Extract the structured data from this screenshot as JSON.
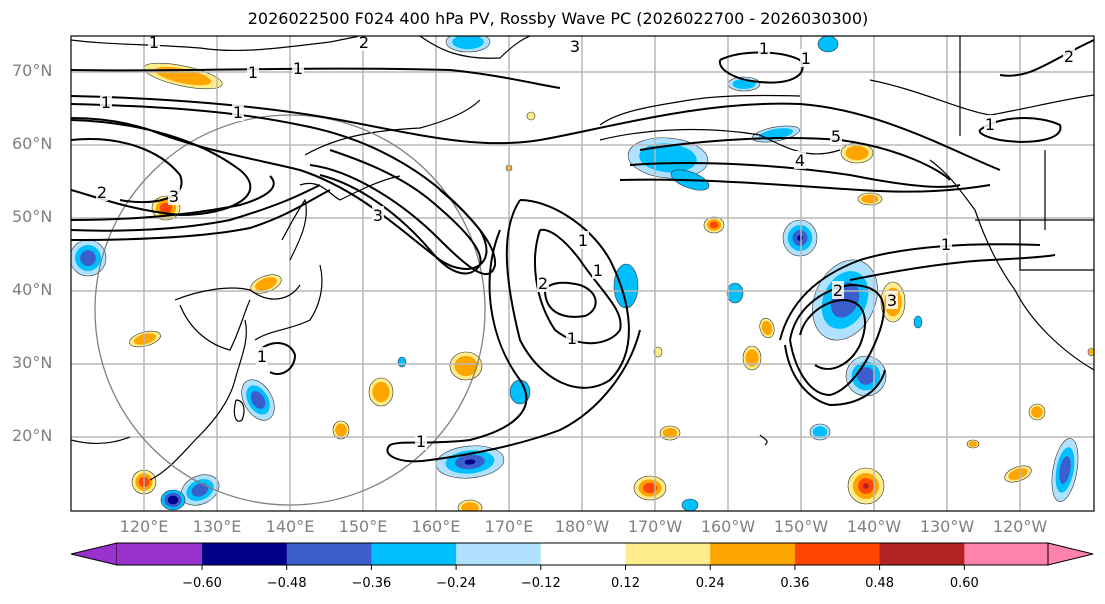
{
  "title": "2026022500 F024 400 hPa PV, Rossby Wave PC (2026022700 - 2026030300)",
  "chart_data": {
    "type": "map",
    "title": "2026022500 F024 400 hPa PV, Rossby Wave PC (2026022700 - 2026030300)",
    "lat_ticks": [
      "70°N",
      "60°N",
      "50°N",
      "40°N",
      "30°N",
      "20°N"
    ],
    "lon_ticks": [
      "120°E",
      "130°E",
      "140°E",
      "150°E",
      "160°E",
      "170°E",
      "180°W",
      "170°W",
      "160°W",
      "150°W",
      "140°W",
      "130°W",
      "120°W"
    ],
    "lon_range": [
      112,
      253
    ],
    "lat_range": [
      10,
      75
    ],
    "grid": true,
    "contour_field": "400 hPa PV",
    "contour_labels": [
      "1",
      "2",
      "3",
      "4",
      "5"
    ],
    "shaded_field": "Rossby Wave PC",
    "colorbar": {
      "levels": [
        -0.6,
        -0.48,
        -0.36,
        -0.24,
        -0.12,
        0.12,
        0.24,
        0.36,
        0.48,
        0.6
      ],
      "tick_labels": [
        "−0.60",
        "−0.48",
        "−0.36",
        "−0.24",
        "−0.12",
        "0.12",
        "0.24",
        "0.36",
        "0.48",
        "0.60"
      ],
      "colors": [
        "#9932cc",
        "#00008b",
        "#3a5fcd",
        "#00bfff",
        "#b0e2ff",
        "#ffffff",
        "#ffec8b",
        "#ffa500",
        "#ff4500",
        "#b22222",
        "#ff82ab"
      ],
      "extend": "both"
    }
  }
}
